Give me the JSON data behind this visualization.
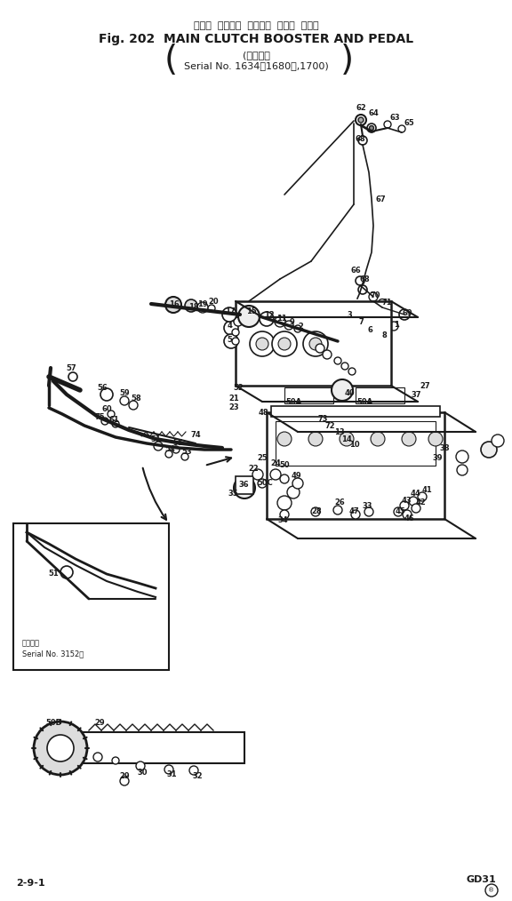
{
  "title_japanese": "メイン  クラッチ  ブースタ  および  ペダル",
  "title_english": "Fig. 202  MAIN CLUTCH BOOSTER AND PEDAL",
  "subtitle_line1": "(適用号機",
  "subtitle_line2": "Serial No. 1634～1680～,1700)",
  "footer_left": "2-9-1",
  "footer_right": "GD31",
  "bg_color": "#ffffff",
  "line_color": "#1a1a1a",
  "inset_label_japanese": "適用号機",
  "inset_label_serial": "Serial No. 3152～",
  "font_size_title_jp": 8,
  "font_size_title_en": 10,
  "font_size_subtitle": 8,
  "font_size_labels": 6,
  "font_size_footer": 8
}
